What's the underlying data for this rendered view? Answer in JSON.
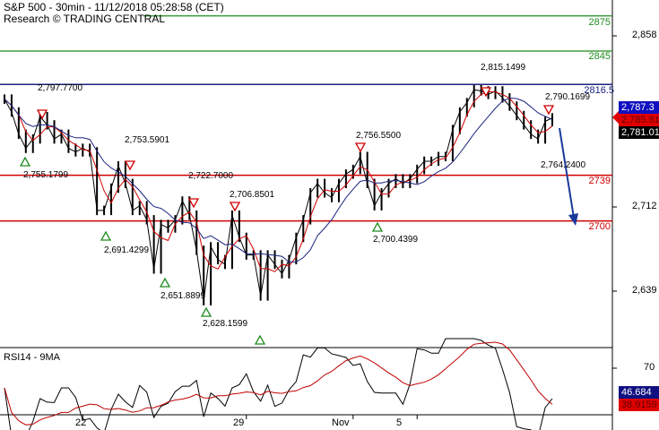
{
  "header": {
    "title": "S&P 500 - 30min - 11/12/2018 05:28:58 (CET)",
    "source": "Research © TRADING CENTRAL"
  },
  "chart_data": {
    "type": "line",
    "xlabel": "",
    "ylabel": "",
    "x_ticks": [
      {
        "label": "22",
        "bar": 11
      },
      {
        "label": "29",
        "bar": 34
      },
      {
        "label": "Nov",
        "bar": 49
      },
      {
        "label": "5",
        "bar": 58
      }
    ],
    "ylim": [
      2600,
      2890
    ],
    "y_ticks": [
      "2,858",
      "2,785",
      "2,712",
      "2,639"
    ],
    "close": [
      2804,
      2793,
      2774,
      2762,
      2770,
      2789,
      2782,
      2770,
      2774,
      2762,
      2759,
      2762,
      2759,
      2709,
      2709,
      2728,
      2747,
      2732,
      2709,
      2713,
      2701,
      2659,
      2697,
      2694,
      2701,
      2717,
      2705,
      2675,
      2632,
      2678,
      2667,
      2663,
      2705,
      2686,
      2671,
      2671,
      2636,
      2671,
      2663,
      2655,
      2667,
      2686,
      2701,
      2724,
      2732,
      2724,
      2720,
      2732,
      2740,
      2744,
      2755,
      2732,
      2713,
      2724,
      2732,
      2736,
      2732,
      2736,
      2744,
      2751,
      2751,
      2755,
      2755,
      2778,
      2793,
      2801,
      2812,
      2811,
      2808,
      2811,
      2805,
      2798,
      2790,
      2782,
      2774,
      2770,
      2785,
      2788
    ],
    "levels": [
      {
        "value": 2875,
        "label": "2875",
        "color": "#1e8c1e"
      },
      {
        "value": 2845,
        "label": "2845",
        "color": "#1e8c1e"
      },
      {
        "value": 2816.5,
        "label": "2816.5",
        "color": "#1a237e"
      },
      {
        "value": 2739,
        "label": "2739",
        "color": "#d00000"
      },
      {
        "value": 2700,
        "label": "2700",
        "color": "#d00000"
      }
    ],
    "annotations": [
      "2,797.7700",
      "2,755.1799",
      "2,753.5901",
      "2,691.4299",
      "2,722.7000",
      "2,706.8501",
      "2,651.8899",
      "2,628.1599",
      "2,756.5500",
      "2,700.4399",
      "2,815.1499",
      "2,790.1699",
      "2,764.2400"
    ],
    "price_tags": [
      {
        "value": "2,787.3",
        "bg": "#1010c0",
        "fg": "#fff"
      },
      {
        "value": "2,785.81",
        "bg": "#e00000",
        "fg": "#600"
      },
      {
        "value": "2,781.01",
        "bg": "#000",
        "fg": "#fff"
      }
    ],
    "rsi": {
      "title": "RSI14 - 9MA",
      "y_ticks": [
        "70"
      ],
      "value": "46.684",
      "ma_value": "38.9159",
      "colors": {
        "rsi": "#000",
        "ma": "#c00000"
      }
    },
    "colors": {
      "price": "#000",
      "ma_fast": "#d00000",
      "ma_slow": "#1a237e",
      "arrow": "#1a3a9a"
    }
  }
}
